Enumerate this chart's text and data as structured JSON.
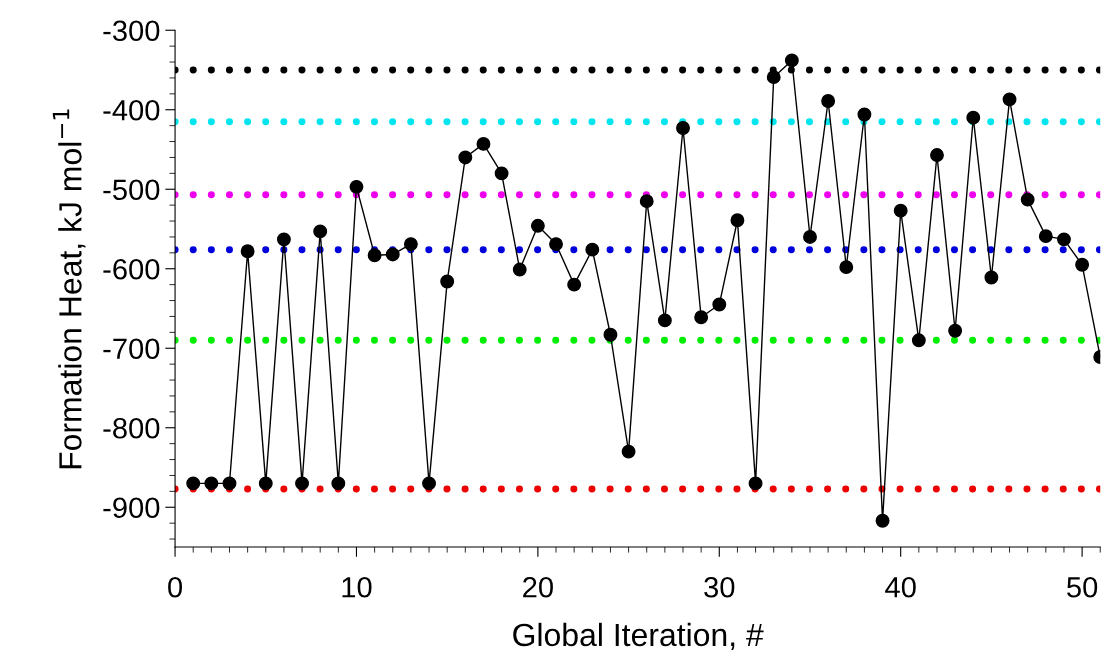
{
  "chart_data": {
    "type": "line",
    "xlabel": "Global Iteration, #",
    "ylabel": "Formation Heat, kJ mol$^{−1}$",
    "x": [
      1,
      2,
      3,
      4,
      5,
      6,
      7,
      8,
      9,
      10,
      11,
      12,
      13,
      14,
      15,
      16,
      17,
      18,
      19,
      20,
      21,
      22,
      23,
      24,
      25,
      26,
      27,
      28,
      29,
      30,
      31,
      32,
      33,
      34,
      35,
      36,
      37,
      38,
      39,
      40,
      41,
      42,
      43,
      44,
      45,
      46,
      47,
      48,
      49,
      50,
      51
    ],
    "series": [
      {
        "color": "#000000",
        "values": [
          -870,
          -870,
          -870,
          -578,
          -870,
          -563,
          -870,
          -553,
          -870,
          -497,
          -583,
          -582,
          -569,
          -870,
          -616,
          -460,
          -443,
          -480,
          -601,
          -546,
          -569,
          -620,
          -576,
          -683,
          -830,
          -515,
          -665,
          -423,
          -661,
          -645,
          -539,
          -870,
          -359,
          -338,
          -560,
          -389,
          -598,
          -406,
          -917,
          -527,
          -690,
          -457,
          -678,
          -410,
          -611,
          -387,
          -513,
          -559,
          -563,
          -595,
          -711
        ]
      }
    ],
    "marker": "circle",
    "line_style": "solid",
    "grid": false,
    "legend": false,
    "xlim": [
      0,
      51
    ],
    "xticks": [
      0,
      10,
      20,
      30,
      40,
      50
    ],
    "ylim": [
      -950,
      -300
    ],
    "yticks": [
      -300,
      -400,
      -500,
      -600,
      -700,
      -800,
      -900
    ],
    "ref_lines": [
      {
        "axis": "y",
        "value": -350,
        "color": "#000000",
        "line_style": "dotted"
      },
      {
        "axis": "y",
        "value": -415,
        "color": "#00e5ee",
        "line_style": "dotted"
      },
      {
        "axis": "y",
        "value": -507,
        "color": "#ee00ee",
        "line_style": "dotted"
      },
      {
        "axis": "y",
        "value": -576,
        "color": "#0000dd",
        "line_style": "dotted"
      },
      {
        "axis": "y",
        "value": -690,
        "color": "#00ee00",
        "line_style": "dotted"
      },
      {
        "axis": "y",
        "value": -877,
        "color": "#ee0000",
        "line_style": "dotted"
      }
    ]
  }
}
